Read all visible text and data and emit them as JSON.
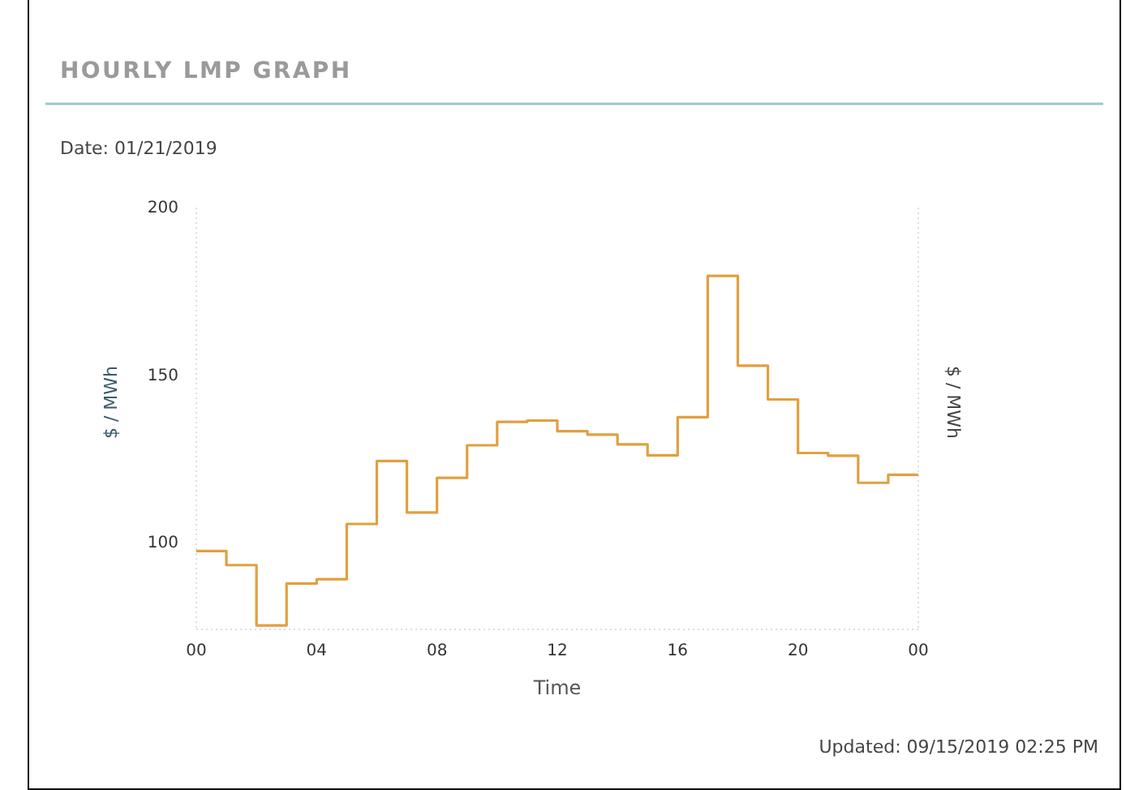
{
  "chart_data": {
    "type": "step",
    "title": "HOURLY LMP GRAPH",
    "subtitle": "Date: 01/21/2019",
    "xlabel": "Time",
    "ylabel": "$ / MWh",
    "y2label": "$ / MWh",
    "annotations": [
      "Updated: 09/15/2019 02:25 PM"
    ],
    "x": [
      0,
      1,
      2,
      3,
      4,
      5,
      6,
      7,
      8,
      9,
      10,
      11,
      12,
      13,
      14,
      15,
      16,
      17,
      18,
      19,
      20,
      21,
      22,
      23,
      24
    ],
    "series": [
      {
        "color": "#e0a040",
        "values": [
          97.4,
          93.2,
          75.2,
          87.7,
          89,
          105.5,
          124.3,
          108.9,
          119.3,
          129,
          136,
          136.4,
          133.2,
          132.2,
          129.3,
          126,
          137.4,
          179.6,
          152.8,
          142.7,
          126.7,
          125.9,
          117.8,
          120.2,
          120.2
        ]
      }
    ],
    "xlim": [
      0,
      24
    ],
    "xticks": [
      {
        "value": 0,
        "label": "00"
      },
      {
        "value": 4,
        "label": "04"
      },
      {
        "value": 8,
        "label": "08"
      },
      12,
      16,
      20,
      {
        "value": 24,
        "label": "00"
      }
    ],
    "ylim": [
      74,
      200
    ],
    "yticks": [
      100,
      150,
      200
    ],
    "grid": false
  }
}
